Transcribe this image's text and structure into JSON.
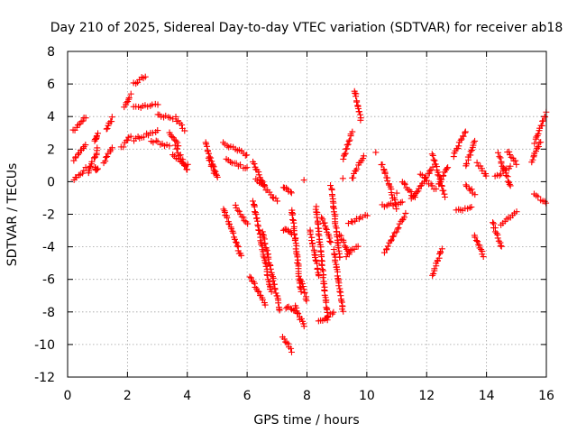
{
  "chart_data": {
    "type": "scatter",
    "title": "Day 210 of 2025, Sidereal Day-to-day VTEC variation (SDTVAR) for receiver ab18",
    "xlabel": "GPS time / hours",
    "ylabel": "SDTVAR / TECUs",
    "xlim": [
      0,
      16
    ],
    "ylim": [
      -12,
      8
    ],
    "xticks": [
      0,
      2,
      4,
      6,
      8,
      10,
      12,
      14,
      16
    ],
    "yticks": [
      -12,
      -10,
      -8,
      -6,
      -4,
      -2,
      0,
      2,
      4,
      6,
      8
    ],
    "xtick_labels": [
      "0",
      "2",
      "4",
      "6",
      "8",
      "10",
      "12",
      "14",
      "16"
    ],
    "ytick_labels": [
      "-12",
      "-10",
      "-8",
      "-6",
      "-4",
      "-2",
      "0",
      "2",
      "4",
      "6",
      "8"
    ],
    "grid": true,
    "marker": "+",
    "color": "#ff0000",
    "segments": [
      {
        "x": [
          0.2,
          0.6
        ],
        "y": [
          3.1,
          4.0
        ]
      },
      {
        "x": [
          0.2,
          0.6
        ],
        "y": [
          1.3,
          2.3
        ]
      },
      {
        "x": [
          0.2,
          0.6
        ],
        "y": [
          0.1,
          0.8
        ]
      },
      {
        "x": [
          0.7,
          0.8
        ],
        "y": [
          0.6,
          1.2
        ]
      },
      {
        "x": [
          0.9,
          1.0
        ],
        "y": [
          2.5,
          2.9
        ]
      },
      {
        "x": [
          0.9,
          1.0
        ],
        "y": [
          1.4,
          2.0
        ]
      },
      {
        "x": [
          0.9,
          1.0
        ],
        "y": [
          0.8,
          0.8
        ]
      },
      {
        "x": [
          1.2,
          1.5
        ],
        "y": [
          1.2,
          2.0
        ]
      },
      {
        "x": [
          1.3,
          1.5
        ],
        "y": [
          3.2,
          3.9
        ]
      },
      {
        "x": [
          1.8,
          2.1
        ],
        "y": [
          2.1,
          2.8
        ]
      },
      {
        "x": [
          1.9,
          2.1
        ],
        "y": [
          4.6,
          5.3
        ]
      },
      {
        "x": [
          2.2,
          2.6
        ],
        "y": [
          6.0,
          6.5
        ]
      },
      {
        "x": [
          2.2,
          3.0
        ],
        "y": [
          4.6,
          4.7
        ]
      },
      {
        "x": [
          2.2,
          3.0
        ],
        "y": [
          2.6,
          3.1
        ]
      },
      {
        "x": [
          2.8,
          3.4
        ],
        "y": [
          2.5,
          2.2
        ]
      },
      {
        "x": [
          3.0,
          3.5
        ],
        "y": [
          4.2,
          3.8
        ]
      },
      {
        "x": [
          3.4,
          3.7
        ],
        "y": [
          3.0,
          2.2
        ]
      },
      {
        "x": [
          3.6,
          3.9
        ],
        "y": [
          3.9,
          3.2
        ]
      },
      {
        "x": [
          3.5,
          4.0
        ],
        "y": [
          1.6,
          1.0
        ]
      },
      {
        "x": [
          3.6,
          4.0
        ],
        "y": [
          2.2,
          0.7
        ]
      },
      {
        "x": [
          4.6,
          5.0
        ],
        "y": [
          2.4,
          0.2
        ]
      },
      {
        "x": [
          4.7,
          4.9
        ],
        "y": [
          1.5,
          0.6
        ]
      },
      {
        "x": [
          5.2,
          6.0
        ],
        "y": [
          2.4,
          1.6
        ]
      },
      {
        "x": [
          5.3,
          6.0
        ],
        "y": [
          1.4,
          0.8
        ]
      },
      {
        "x": [
          5.2,
          5.8
        ],
        "y": [
          -1.6,
          -4.6
        ]
      },
      {
        "x": [
          5.6,
          6.0
        ],
        "y": [
          -1.5,
          -2.6
        ]
      },
      {
        "x": [
          6.2,
          6.6
        ],
        "y": [
          1.2,
          -0.3
        ]
      },
      {
        "x": [
          6.3,
          7.0
        ],
        "y": [
          0.2,
          -1.2
        ]
      },
      {
        "x": [
          6.2,
          6.8
        ],
        "y": [
          -1.2,
          -6.8
        ]
      },
      {
        "x": [
          6.5,
          7.1
        ],
        "y": [
          -3.0,
          -7.9
        ]
      },
      {
        "x": [
          6.1,
          6.6
        ],
        "y": [
          -5.8,
          -7.6
        ]
      },
      {
        "x": [
          7.2,
          7.5
        ],
        "y": [
          -0.3,
          -0.7
        ]
      },
      {
        "x": [
          7.2,
          7.5
        ],
        "y": [
          -2.9,
          -3.2
        ]
      },
      {
        "x": [
          7.2,
          7.5
        ],
        "y": [
          -9.5,
          -10.4
        ]
      },
      {
        "x": [
          7.3,
          7.6
        ],
        "y": [
          -7.7,
          -7.9
        ]
      },
      {
        "x": [
          7.5,
          7.8
        ],
        "y": [
          -1.7,
          -6.8
        ]
      },
      {
        "x": [
          7.6,
          7.9
        ],
        "y": [
          -7.6,
          -8.9
        ]
      },
      {
        "x": [
          7.8,
          8.0
        ],
        "y": [
          -6.0,
          -7.3
        ]
      },
      {
        "x": [
          8.1,
          8.4
        ],
        "y": [
          -3.0,
          -5.8
        ]
      },
      {
        "x": [
          8.3,
          8.7
        ],
        "y": [
          -1.5,
          -8.5
        ]
      },
      {
        "x": [
          8.5,
          8.8
        ],
        "y": [
          -2.2,
          -3.8
        ]
      },
      {
        "x": [
          8.4,
          8.9
        ],
        "y": [
          -8.6,
          -8.0
        ]
      },
      {
        "x": [
          8.8,
          9.1
        ],
        "y": [
          -0.3,
          -4.7
        ]
      },
      {
        "x": [
          8.9,
          9.2
        ],
        "y": [
          -4.2,
          -8.0
        ]
      },
      {
        "x": [
          9.1,
          9.4
        ],
        "y": [
          -3.2,
          -4.4
        ]
      },
      {
        "x": [
          9.3,
          9.7
        ],
        "y": [
          -4.6,
          -3.9
        ]
      },
      {
        "x": [
          9.2,
          9.5
        ],
        "y": [
          1.4,
          3.0
        ]
      },
      {
        "x": [
          9.6,
          9.8
        ],
        "y": [
          5.6,
          3.8
        ]
      },
      {
        "x": [
          9.4,
          10.0
        ],
        "y": [
          -2.6,
          -2.0
        ]
      },
      {
        "x": [
          9.5,
          9.9
        ],
        "y": [
          0.2,
          1.6
        ]
      },
      {
        "x": [
          10.5,
          11.0
        ],
        "y": [
          1.1,
          -1.6
        ]
      },
      {
        "x": [
          10.5,
          11.2
        ],
        "y": [
          -1.5,
          -1.3
        ]
      },
      {
        "x": [
          10.6,
          11.3
        ],
        "y": [
          -4.3,
          -2.0
        ]
      },
      {
        "x": [
          11.2,
          11.6
        ],
        "y": [
          0.0,
          -1.0
        ]
      },
      {
        "x": [
          11.5,
          12.2
        ],
        "y": [
          -1.1,
          0.9
        ]
      },
      {
        "x": [
          11.8,
          12.3
        ],
        "y": [
          0.5,
          -0.5
        ]
      },
      {
        "x": [
          12.2,
          12.5
        ],
        "y": [
          -5.8,
          -4.1
        ]
      },
      {
        "x": [
          12.2,
          12.6
        ],
        "y": [
          1.7,
          -0.9
        ]
      },
      {
        "x": [
          12.4,
          12.7
        ],
        "y": [
          -0.2,
          0.9
        ]
      },
      {
        "x": [
          12.9,
          13.3
        ],
        "y": [
          1.6,
          3.1
        ]
      },
      {
        "x": [
          13.0,
          13.5
        ],
        "y": [
          -1.8,
          -1.6
        ]
      },
      {
        "x": [
          13.3,
          13.6
        ],
        "y": [
          0.9,
          2.5
        ]
      },
      {
        "x": [
          13.3,
          13.6
        ],
        "y": [
          -0.2,
          -0.7
        ]
      },
      {
        "x": [
          13.6,
          13.9
        ],
        "y": [
          -3.3,
          -4.6
        ]
      },
      {
        "x": [
          13.7,
          14.0
        ],
        "y": [
          1.1,
          0.3
        ]
      },
      {
        "x": [
          14.2,
          14.5
        ],
        "y": [
          -2.5,
          -4.0
        ]
      },
      {
        "x": [
          14.3,
          14.8
        ],
        "y": [
          0.3,
          0.9
        ]
      },
      {
        "x": [
          14.4,
          14.8
        ],
        "y": [
          1.7,
          -0.3
        ]
      },
      {
        "x": [
          14.5,
          15.0
        ],
        "y": [
          -2.6,
          -1.9
        ]
      },
      {
        "x": [
          14.7,
          15.0
        ],
        "y": [
          1.9,
          1.1
        ]
      },
      {
        "x": [
          15.5,
          15.8
        ],
        "y": [
          1.2,
          2.5
        ]
      },
      {
        "x": [
          15.6,
          16.0
        ],
        "y": [
          2.4,
          4.2
        ]
      },
      {
        "x": [
          15.6,
          16.0
        ],
        "y": [
          -0.8,
          -1.3
        ]
      }
    ],
    "isolated_points": [
      {
        "x": 10.3,
        "y": 1.8
      },
      {
        "x": 9.2,
        "y": 0.2
      },
      {
        "x": 7.9,
        "y": 0.1
      },
      {
        "x": 11.0,
        "y": -0.7
      }
    ]
  }
}
